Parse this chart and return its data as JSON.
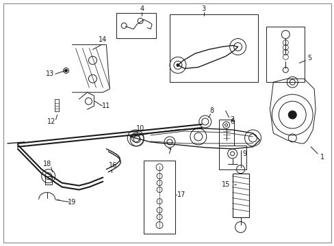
{
  "background_color": "#ffffff",
  "line_color": "#1a1a1a",
  "fig_width": 4.89,
  "fig_height": 3.6,
  "dpi": 100
}
